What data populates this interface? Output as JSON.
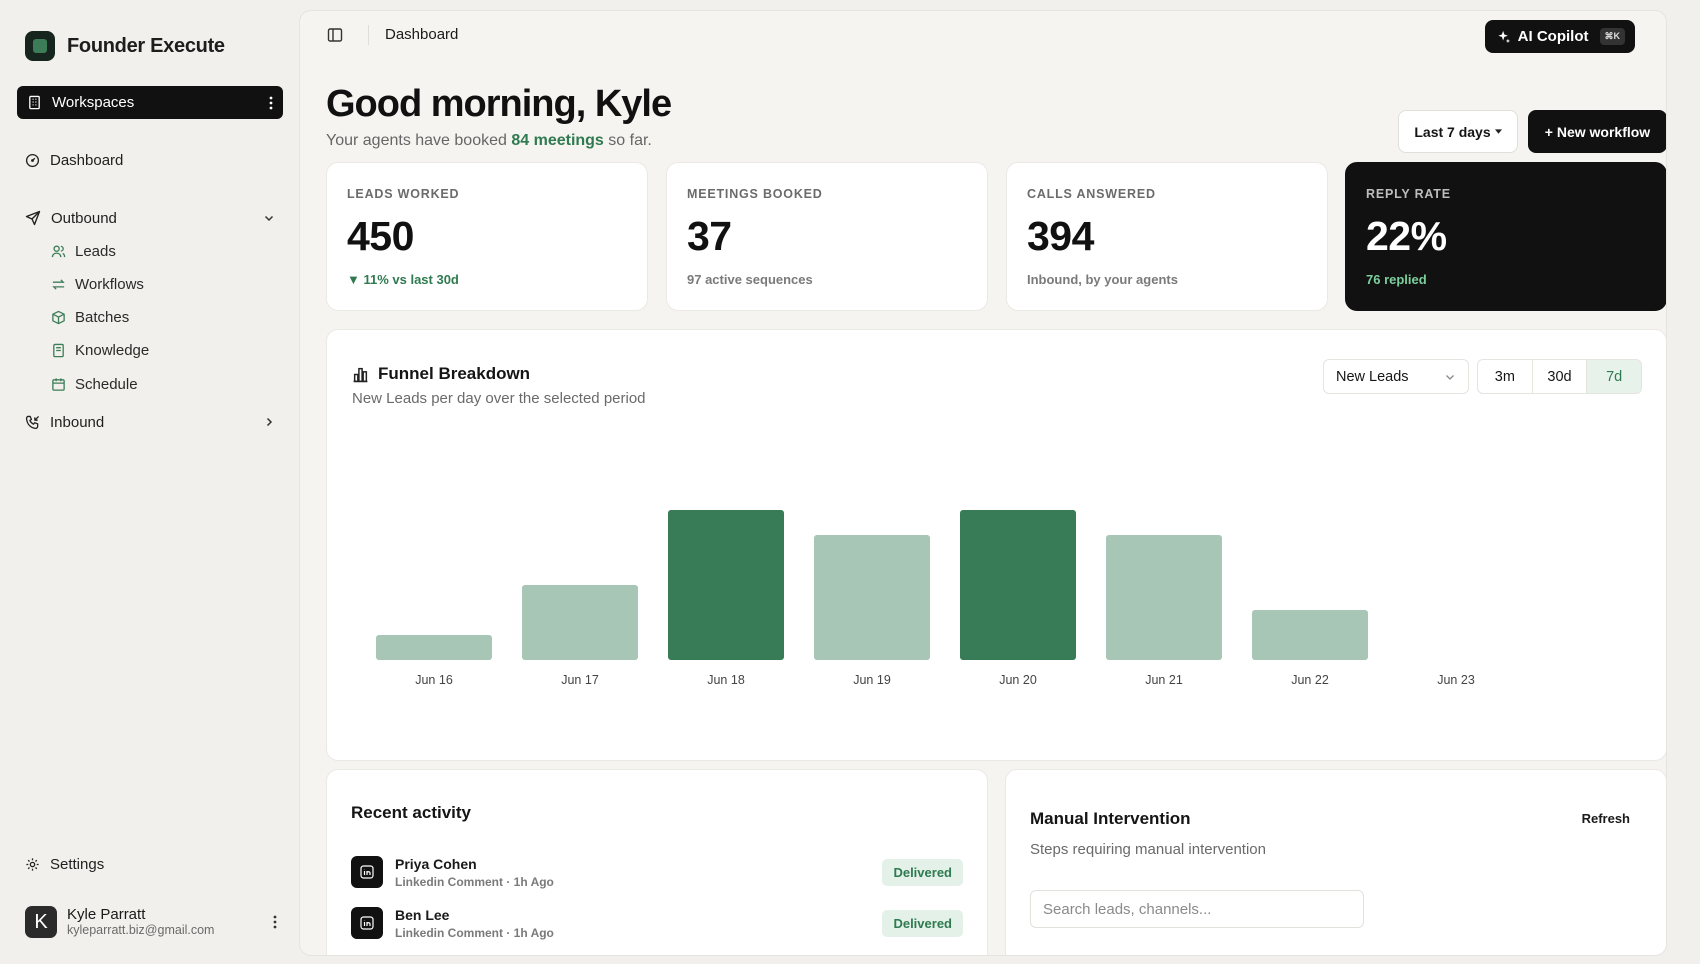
{
  "brand": {
    "name": "Founder Execute"
  },
  "workspace": {
    "label": "Workspaces"
  },
  "nav": {
    "dashboard": "Dashboard",
    "outbound": "Outbound",
    "outbound_items": [
      "Leads",
      "Workflows",
      "Batches",
      "Knowledge",
      "Schedule"
    ],
    "inbound": "Inbound",
    "settings": "Settings"
  },
  "user": {
    "initial": "K",
    "name": "Kyle Parratt",
    "email": "kyleparratt.biz@gmail.com"
  },
  "topbar": {
    "breadcrumb": "Dashboard",
    "copilot_label": "AI Copilot",
    "copilot_shortcut": "⌘K"
  },
  "header": {
    "greeting": "Good morning, Kyle",
    "sub_prefix": "Your agents have booked ",
    "sub_highlight": "84 meetings",
    "sub_suffix": " so far.",
    "range_label": "Last 7 days",
    "new_workflow_label": "+ New workflow"
  },
  "stats": [
    {
      "label": "LEADS WORKED",
      "value": "450",
      "foot": "▼ 11% vs last 30d"
    },
    {
      "label": "MEETINGS BOOKED",
      "value": "37",
      "foot": "97 active sequences"
    },
    {
      "label": "CALLS ANSWERED",
      "value": "394",
      "foot": "Inbound, by your agents"
    },
    {
      "label": "REPLY RATE",
      "value": "22%",
      "foot": "76 replied"
    }
  ],
  "funnel": {
    "title": "Funnel Breakdown",
    "subtitle": "New Leads per day over the selected period",
    "metric_select": "New Leads",
    "periods": [
      "3m",
      "30d",
      "7d"
    ],
    "active_period": "7d"
  },
  "chart_data": {
    "type": "bar",
    "categories": [
      "Jun 16",
      "Jun 17",
      "Jun 18",
      "Jun 19",
      "Jun 20",
      "Jun 21",
      "Jun 22",
      "Jun 23"
    ],
    "values": [
      1,
      3,
      6,
      5,
      6,
      5,
      2,
      0
    ],
    "highlighted": [
      "Jun 18",
      "Jun 20"
    ],
    "ylim": [
      0,
      6
    ],
    "grid": false,
    "colors": {
      "bar": "#a8c6b5",
      "bar_highlight": "#377c57"
    }
  },
  "activity": {
    "title": "Recent activity",
    "items": [
      {
        "name": "Priya Cohen",
        "meta": "Linkedin Comment · 1h Ago",
        "status": "Delivered"
      },
      {
        "name": "Ben Lee",
        "meta": "Linkedin Comment · 1h Ago",
        "status": "Delivered"
      }
    ]
  },
  "manual": {
    "title": "Manual Intervention",
    "subtitle": "Steps requiring manual intervention",
    "refresh_label": "Refresh",
    "search_placeholder": "Search leads, channels..."
  },
  "colors": {
    "accent": "#2f7a50",
    "dark": "#111111",
    "background": "#f2f0ec"
  }
}
